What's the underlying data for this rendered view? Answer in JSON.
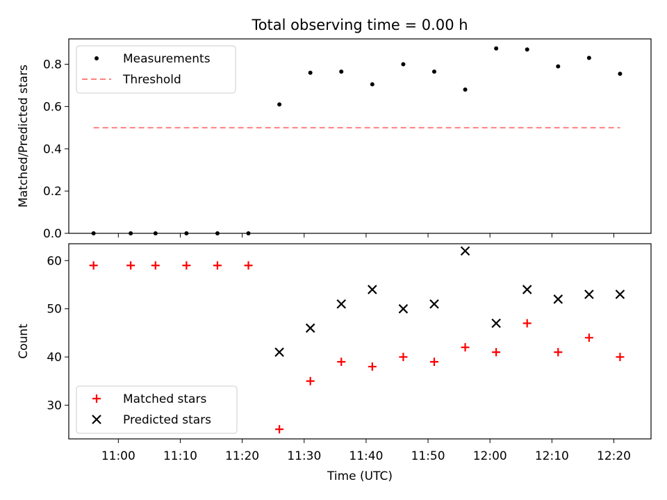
{
  "chart_data": [
    {
      "type": "scatter",
      "title": "Total observing time = 0.00 h",
      "ylabel": "Matched/Predicted stars",
      "xlim": [
        "10:52",
        "12:26"
      ],
      "ylim": [
        0,
        0.92
      ],
      "y_ticks": [
        0.0,
        0.2,
        0.4,
        0.6,
        0.8
      ],
      "y_tick_labels": [
        "0.0",
        "0.2",
        "0.4",
        "0.6",
        "0.8"
      ],
      "legend_position": "upper-left",
      "legend": [
        "Measurements",
        "Threshold"
      ],
      "series": [
        {
          "name": "Measurements",
          "marker": "dot",
          "color": "#000000",
          "points": [
            {
              "x": "10:56",
              "y": 0.0
            },
            {
              "x": "11:02",
              "y": 0.0
            },
            {
              "x": "11:06",
              "y": 0.0
            },
            {
              "x": "11:11",
              "y": 0.0
            },
            {
              "x": "11:16",
              "y": 0.0
            },
            {
              "x": "11:21",
              "y": 0.0
            },
            {
              "x": "11:26",
              "y": 0.61
            },
            {
              "x": "11:31",
              "y": 0.76
            },
            {
              "x": "11:36",
              "y": 0.765
            },
            {
              "x": "11:41",
              "y": 0.705
            },
            {
              "x": "11:46",
              "y": 0.8
            },
            {
              "x": "11:51",
              "y": 0.765
            },
            {
              "x": "11:56",
              "y": 0.68
            },
            {
              "x": "12:01",
              "y": 0.875
            },
            {
              "x": "12:06",
              "y": 0.87
            },
            {
              "x": "12:11",
              "y": 0.79
            },
            {
              "x": "12:16",
              "y": 0.83
            },
            {
              "x": "12:21",
              "y": 0.755
            }
          ]
        },
        {
          "name": "Threshold",
          "marker": "dashed-line",
          "color": "#ff7f7f",
          "points": [
            {
              "x": "10:56",
              "y": 0.5
            },
            {
              "x": "12:21",
              "y": 0.5
            }
          ]
        }
      ]
    },
    {
      "type": "scatter",
      "xlabel": "Time (UTC)",
      "ylabel": "Count",
      "xlim": [
        "10:52",
        "12:26"
      ],
      "ylim": [
        23,
        63.5
      ],
      "x_ticks": [
        "11:00",
        "11:10",
        "11:20",
        "11:30",
        "11:40",
        "11:50",
        "12:00",
        "12:10",
        "12:20"
      ],
      "y_ticks": [
        30,
        40,
        50,
        60
      ],
      "y_tick_labels": [
        "30",
        "40",
        "50",
        "60"
      ],
      "legend_position": "lower-left",
      "legend": [
        "Matched stars",
        "Predicted stars"
      ],
      "series": [
        {
          "name": "Matched stars",
          "marker": "plus",
          "color": "#ff0000",
          "points": [
            {
              "x": "10:56",
              "y": 59
            },
            {
              "x": "11:02",
              "y": 59
            },
            {
              "x": "11:06",
              "y": 59
            },
            {
              "x": "11:11",
              "y": 59
            },
            {
              "x": "11:16",
              "y": 59
            },
            {
              "x": "11:21",
              "y": 59
            },
            {
              "x": "11:26",
              "y": 25
            },
            {
              "x": "11:31",
              "y": 35
            },
            {
              "x": "11:36",
              "y": 39
            },
            {
              "x": "11:41",
              "y": 38
            },
            {
              "x": "11:46",
              "y": 40
            },
            {
              "x": "11:51",
              "y": 39
            },
            {
              "x": "11:56",
              "y": 42
            },
            {
              "x": "12:01",
              "y": 41
            },
            {
              "x": "12:06",
              "y": 47
            },
            {
              "x": "12:11",
              "y": 41
            },
            {
              "x": "12:16",
              "y": 44
            },
            {
              "x": "12:21",
              "y": 40
            }
          ]
        },
        {
          "name": "Predicted stars",
          "marker": "x",
          "color": "#000000",
          "points": [
            {
              "x": "11:26",
              "y": 41
            },
            {
              "x": "11:31",
              "y": 46
            },
            {
              "x": "11:36",
              "y": 51
            },
            {
              "x": "11:41",
              "y": 54
            },
            {
              "x": "11:46",
              "y": 50
            },
            {
              "x": "11:51",
              "y": 51
            },
            {
              "x": "11:56",
              "y": 62
            },
            {
              "x": "12:01",
              "y": 47
            },
            {
              "x": "12:06",
              "y": 54
            },
            {
              "x": "12:11",
              "y": 52
            },
            {
              "x": "12:16",
              "y": 53
            },
            {
              "x": "12:21",
              "y": 53
            }
          ]
        }
      ]
    }
  ]
}
